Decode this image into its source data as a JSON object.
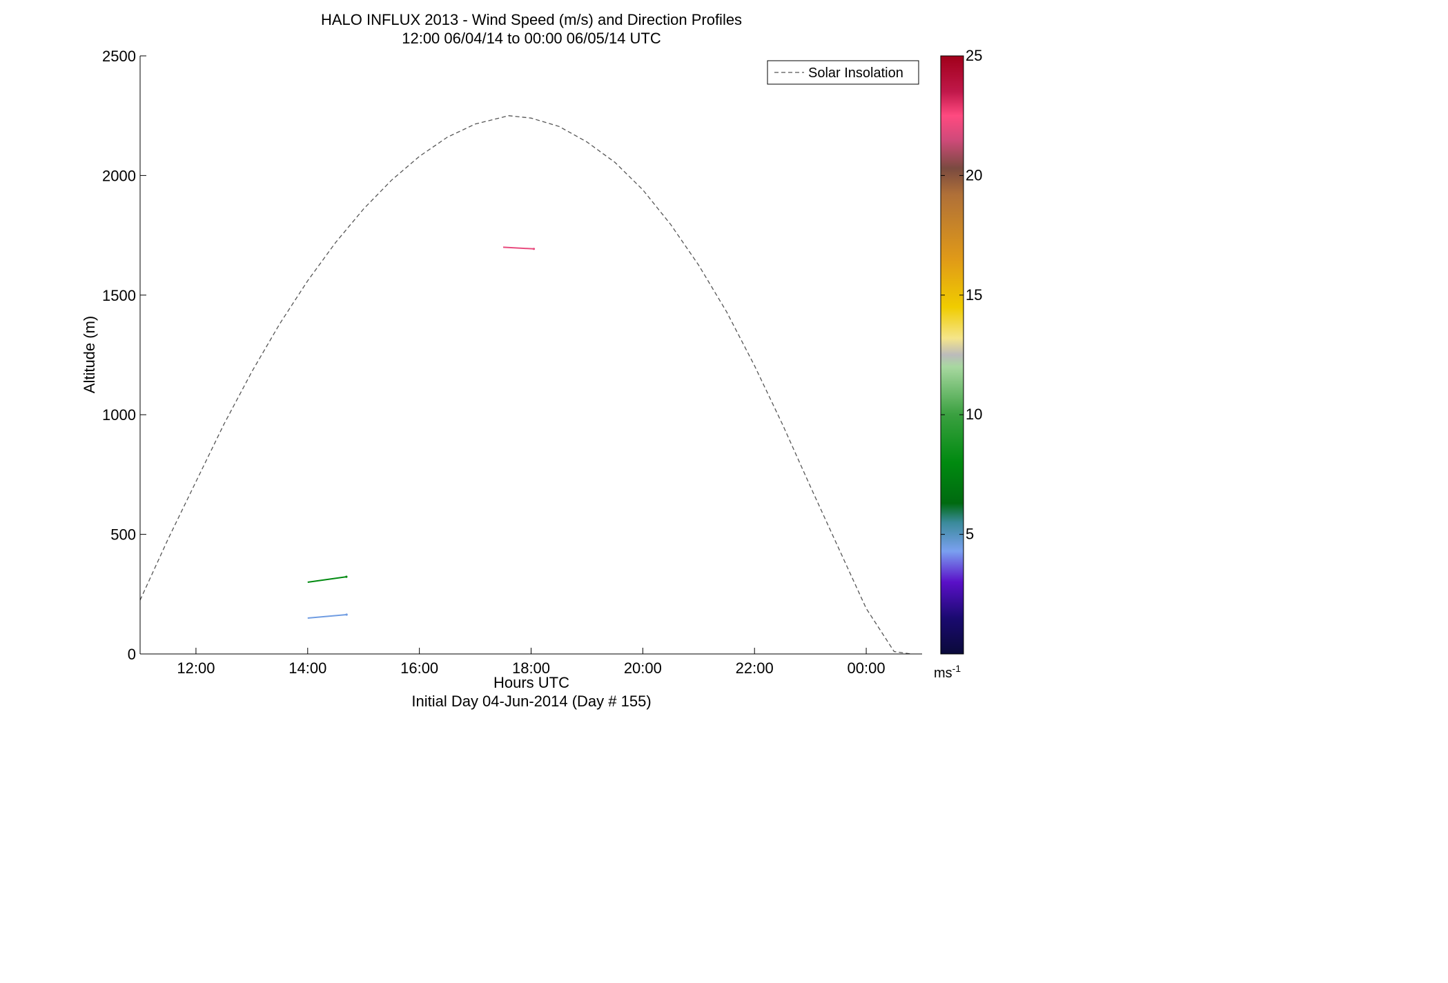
{
  "chart_data": {
    "type": "scatter",
    "title": "HALO INFLUX 2013 - Wind Speed (m/s) and Direction Profiles",
    "subtitle": "12:00 06/04/14 to 00:00 06/05/14  UTC",
    "xlabel": "Hours UTC",
    "xlabel_sub": "Initial Day 04-Jun-2014 (Day # 155)",
    "ylabel": "Altitude (m)",
    "xlim": [
      11.0,
      25.0
    ],
    "ylim": [
      0,
      2500
    ],
    "x_ticks": [
      {
        "value": 12,
        "label": "12:00"
      },
      {
        "value": 14,
        "label": "14:00"
      },
      {
        "value": 16,
        "label": "16:00"
      },
      {
        "value": 18,
        "label": "18:00"
      },
      {
        "value": 20,
        "label": "20:00"
      },
      {
        "value": 22,
        "label": "22:00"
      },
      {
        "value": 24,
        "label": "00:00"
      }
    ],
    "y_ticks": [
      0,
      500,
      1000,
      1500,
      2000,
      2500
    ],
    "grid": false,
    "legend": {
      "placement": "top-right",
      "entries": [
        "Solar Insolation"
      ]
    },
    "colorbar": {
      "label": "ms",
      "label_exponent": "-1",
      "range": [
        0,
        25
      ],
      "ticks": [
        5,
        10,
        15,
        20,
        25
      ],
      "stops": [
        {
          "v": 0,
          "color": "#0a0a3a"
        },
        {
          "v": 1.5,
          "color": "#1a0a70"
        },
        {
          "v": 3,
          "color": "#5a10c8"
        },
        {
          "v": 4.3,
          "color": "#7aa0f0"
        },
        {
          "v": 5.5,
          "color": "#3a8a9a"
        },
        {
          "v": 6.3,
          "color": "#006a10"
        },
        {
          "v": 8,
          "color": "#008a10"
        },
        {
          "v": 10,
          "color": "#3aa040"
        },
        {
          "v": 12,
          "color": "#a8d8a0"
        },
        {
          "v": 12.5,
          "color": "#bbbbbb"
        },
        {
          "v": 13.2,
          "color": "#f5e58a"
        },
        {
          "v": 14.5,
          "color": "#f0cc00"
        },
        {
          "v": 16.5,
          "color": "#e09a18"
        },
        {
          "v": 19.2,
          "color": "#b07038"
        },
        {
          "v": 20.3,
          "color": "#7a4a40"
        },
        {
          "v": 21.5,
          "color": "#d04a7a"
        },
        {
          "v": 22.5,
          "color": "#ff4a80"
        },
        {
          "v": 23.5,
          "color": "#c0184a"
        },
        {
          "v": 25,
          "color": "#a0001a"
        }
      ]
    },
    "series": [
      {
        "name": "Solar Insolation",
        "style": "dashed",
        "x": [
          11.0,
          11.5,
          12.0,
          12.5,
          13.0,
          13.5,
          14.0,
          14.5,
          15.0,
          15.5,
          16.0,
          16.5,
          17.0,
          17.6,
          18.0,
          18.5,
          19.0,
          19.5,
          20.0,
          20.5,
          21.0,
          21.5,
          22.0,
          22.5,
          23.0,
          23.5,
          24.0,
          24.5,
          24.8
        ],
        "y": [
          225,
          480,
          720,
          960,
          1180,
          1380,
          1560,
          1720,
          1860,
          1980,
          2080,
          2160,
          2215,
          2250,
          2240,
          2205,
          2140,
          2055,
          1940,
          1795,
          1625,
          1430,
          1205,
          960,
          700,
          445,
          190,
          10,
          0
        ]
      }
    ],
    "barbs": [
      {
        "t": 14.0,
        "alt": 300,
        "spd": 8,
        "len": 0.7,
        "ang": -8
      },
      {
        "t": 14.0,
        "alt": 150,
        "spd": 4.5,
        "len": 0.7,
        "ang": -5
      },
      {
        "t": 17.5,
        "alt": 1700,
        "spd": 22,
        "len": 0.55,
        "ang": 3
      }
    ]
  }
}
